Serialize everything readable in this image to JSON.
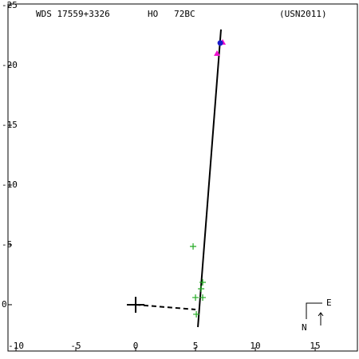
{
  "chart_data": {
    "type": "scatter",
    "header": [
      "WDS 17559+3326",
      "HO   72BC",
      "(USN2011)"
    ],
    "xlim": [
      -10.67,
      18.53
    ],
    "ylim": [
      3.87,
      -25.13
    ],
    "xticks": [
      -10,
      -5,
      0,
      5,
      10,
      15
    ],
    "yticks": [
      -25,
      -20,
      -15,
      -10,
      -5,
      0
    ],
    "series": [
      {
        "marker": "line",
        "color": "#000000",
        "x": [
          5.2,
          7.13
        ],
        "values": [
          1.87,
          -23.0
        ]
      },
      {
        "marker": "dashed",
        "color": "#000000",
        "x": [
          0,
          5.0
        ],
        "values": [
          0,
          0.4
        ]
      },
      {
        "marker": "cross",
        "color": "#000000",
        "x": [
          0
        ],
        "values": [
          0
        ]
      },
      {
        "marker": "plus",
        "color": "#22aa22",
        "x": [
          4.8,
          5.6,
          5.47,
          5.0,
          5.6,
          5.07
        ],
        "values": [
          -4.87,
          -1.87,
          -1.33,
          -0.6,
          -0.6,
          0.8
        ]
      },
      {
        "marker": "triangle",
        "color": "#ee11cc",
        "x": [
          6.8,
          7.27
        ],
        "values": [
          -21.0,
          -21.93
        ]
      },
      {
        "marker": "dot",
        "color": "#1a1acc",
        "x": [
          7.07
        ],
        "values": [
          -21.87
        ]
      }
    ],
    "compass": {
      "north": "N",
      "east": "E"
    }
  }
}
